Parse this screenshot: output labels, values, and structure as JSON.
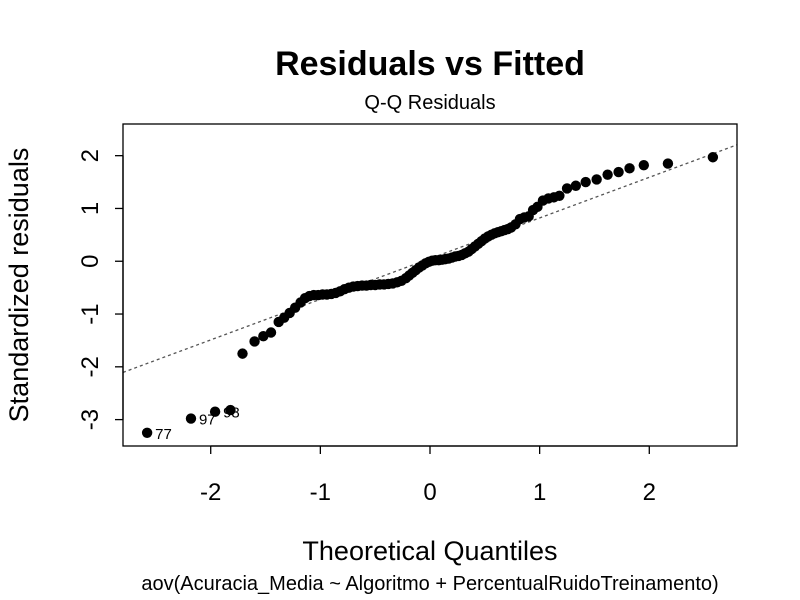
{
  "chart_data": {
    "type": "scatter",
    "title": "Residuals vs Fitted",
    "subtitle": "Q-Q Residuals",
    "xlabel": "Theoretical Quantiles",
    "ylabel": "Standardized residuals",
    "caption": "aov(Acuracia_Media ~ Algoritmo + PercentualRuidoTreinamento)",
    "xlim": [
      -2.8,
      2.8
    ],
    "ylim": [
      -3.5,
      2.6
    ],
    "x_ticks": [
      -2,
      -1,
      0,
      1,
      2
    ],
    "x_tick_labels": [
      "-2",
      "-1",
      "0",
      "1",
      "2"
    ],
    "y_ticks": [
      -3,
      -2,
      -1,
      0,
      1,
      2
    ],
    "y_tick_labels": [
      "-3",
      "-2",
      "-1",
      "0",
      "1",
      "2"
    ],
    "grid": false,
    "point_color": "#000000",
    "reference_line": {
      "style": "dotted",
      "color": "#555555",
      "intercept": 0.05,
      "slope": 0.77
    },
    "labeled_points": [
      {
        "label": "77",
        "x": -2.58,
        "y": -3.25
      },
      {
        "label": "97",
        "x": -2.18,
        "y": -2.98
      },
      {
        "label": "98",
        "x": -1.96,
        "y": -2.85
      }
    ],
    "points": [
      [
        -2.58,
        -3.25
      ],
      [
        -2.18,
        -2.98
      ],
      [
        -1.96,
        -2.85
      ],
      [
        -1.82,
        -2.82
      ],
      [
        -1.71,
        -1.75
      ],
      [
        -1.6,
        -1.52
      ],
      [
        -1.52,
        -1.42
      ],
      [
        -1.45,
        -1.35
      ],
      [
        -1.38,
        -1.15
      ],
      [
        -1.33,
        -1.07
      ],
      [
        -1.28,
        -0.98
      ],
      [
        -1.23,
        -0.88
      ],
      [
        -1.18,
        -0.78
      ],
      [
        -1.14,
        -0.7
      ],
      [
        -1.1,
        -0.66
      ],
      [
        -1.06,
        -0.64
      ],
      [
        -1.02,
        -0.64
      ],
      [
        -0.98,
        -0.63
      ],
      [
        -0.94,
        -0.63
      ],
      [
        -0.9,
        -0.62
      ],
      [
        -0.86,
        -0.6
      ],
      [
        -0.82,
        -0.57
      ],
      [
        -0.78,
        -0.53
      ],
      [
        -0.74,
        -0.5
      ],
      [
        -0.7,
        -0.48
      ],
      [
        -0.66,
        -0.47
      ],
      [
        -0.62,
        -0.46
      ],
      [
        -0.58,
        -0.46
      ],
      [
        -0.54,
        -0.45
      ],
      [
        -0.5,
        -0.45
      ],
      [
        -0.46,
        -0.44
      ],
      [
        -0.42,
        -0.44
      ],
      [
        -0.38,
        -0.43
      ],
      [
        -0.34,
        -0.42
      ],
      [
        -0.3,
        -0.4
      ],
      [
        -0.26,
        -0.37
      ],
      [
        -0.22,
        -0.32
      ],
      [
        -0.19,
        -0.27
      ],
      [
        -0.16,
        -0.22
      ],
      [
        -0.13,
        -0.17
      ],
      [
        -0.1,
        -0.12
      ],
      [
        -0.07,
        -0.08
      ],
      [
        -0.04,
        -0.04
      ],
      [
        -0.01,
        -0.01
      ],
      [
        0.02,
        0.01
      ],
      [
        0.05,
        0.02
      ],
      [
        0.08,
        0.02
      ],
      [
        0.11,
        0.03
      ],
      [
        0.14,
        0.04
      ],
      [
        0.17,
        0.05
      ],
      [
        0.2,
        0.07
      ],
      [
        0.23,
        0.09
      ],
      [
        0.26,
        0.1
      ],
      [
        0.29,
        0.12
      ],
      [
        0.32,
        0.15
      ],
      [
        0.35,
        0.18
      ],
      [
        0.38,
        0.23
      ],
      [
        0.41,
        0.28
      ],
      [
        0.44,
        0.33
      ],
      [
        0.47,
        0.38
      ],
      [
        0.5,
        0.43
      ],
      [
        0.53,
        0.47
      ],
      [
        0.56,
        0.5
      ],
      [
        0.59,
        0.53
      ],
      [
        0.62,
        0.55
      ],
      [
        0.65,
        0.57
      ],
      [
        0.68,
        0.59
      ],
      [
        0.71,
        0.61
      ],
      [
        0.74,
        0.64
      ],
      [
        0.78,
        0.7
      ],
      [
        0.82,
        0.8
      ],
      [
        0.86,
        0.83
      ],
      [
        0.9,
        0.85
      ],
      [
        0.94,
        0.97
      ],
      [
        0.98,
        1.03
      ],
      [
        1.03,
        1.15
      ],
      [
        1.08,
        1.19
      ],
      [
        1.13,
        1.21
      ],
      [
        1.18,
        1.24
      ],
      [
        1.25,
        1.38
      ],
      [
        1.33,
        1.43
      ],
      [
        1.42,
        1.5
      ],
      [
        1.52,
        1.55
      ],
      [
        1.62,
        1.64
      ],
      [
        1.72,
        1.69
      ],
      [
        1.82,
        1.76
      ],
      [
        1.95,
        1.82
      ],
      [
        2.17,
        1.85
      ],
      [
        2.58,
        1.97
      ]
    ]
  }
}
